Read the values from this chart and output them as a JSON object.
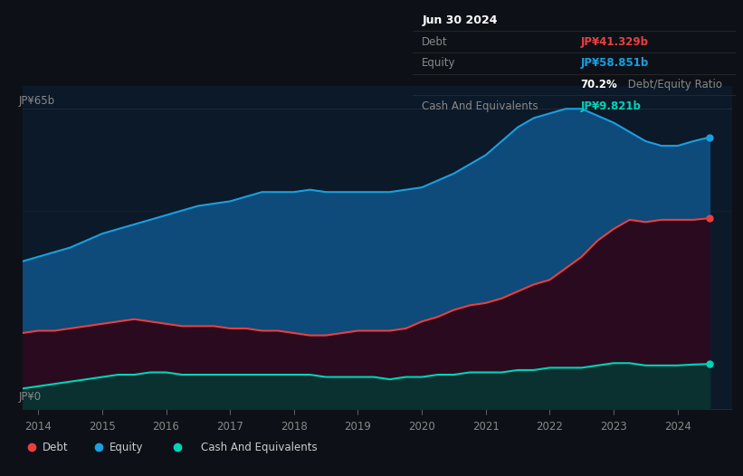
{
  "background_color": "#0d1117",
  "plot_bg_color": "#0b1929",
  "title": "Jun 30 2024",
  "ylabel_top": "JP¥65b",
  "ylabel_bottom": "JP¥0",
  "debt_label": "Debt",
  "equity_label": "Equity",
  "cash_label": "Cash And Equivalents",
  "debt_color": "#e84040",
  "equity_color": "#1a9fe0",
  "cash_color": "#00d4b8",
  "equity_fill_color": "#0e4a7a",
  "debt_fill_color": "#2a0a1e",
  "cash_fill_color": "#0a3030",
  "tooltip": {
    "date": "Jun 30 2024",
    "debt_label": "Debt",
    "debt_value": "JP¥41.329b",
    "equity_label": "Equity",
    "equity_value": "JP¥58.851b",
    "ratio_bold": "70.2%",
    "ratio_text": " Debt/Equity Ratio",
    "cash_label": "Cash And Equivalents",
    "cash_value": "JP¥9.821b",
    "bg_color": "#0a0a0a",
    "border_color": "#2a2a2a",
    "text_color": "#888888",
    "title_color": "#ffffff"
  },
  "years": [
    2013.75,
    2014.0,
    2014.25,
    2014.5,
    2014.75,
    2015.0,
    2015.25,
    2015.5,
    2015.75,
    2016.0,
    2016.25,
    2016.5,
    2016.75,
    2017.0,
    2017.25,
    2017.5,
    2017.75,
    2018.0,
    2018.25,
    2018.5,
    2018.75,
    2019.0,
    2019.25,
    2019.5,
    2019.75,
    2020.0,
    2020.25,
    2020.5,
    2020.75,
    2021.0,
    2021.25,
    2021.5,
    2021.75,
    2022.0,
    2022.25,
    2022.5,
    2022.75,
    2023.0,
    2023.25,
    2023.5,
    2023.75,
    2024.0,
    2024.25,
    2024.5
  ],
  "equity": [
    32.0,
    33.0,
    34.0,
    35.0,
    36.5,
    38.0,
    39.0,
    40.0,
    41.0,
    42.0,
    43.0,
    44.0,
    44.5,
    45.0,
    46.0,
    47.0,
    47.0,
    47.0,
    47.5,
    47.0,
    47.0,
    47.0,
    47.0,
    47.0,
    47.5,
    48.0,
    49.5,
    51.0,
    53.0,
    55.0,
    58.0,
    61.0,
    63.0,
    64.0,
    65.0,
    65.0,
    63.5,
    62.0,
    60.0,
    58.0,
    57.0,
    57.0,
    58.0,
    58.851
  ],
  "debt": [
    16.5,
    17.0,
    17.0,
    17.5,
    18.0,
    18.5,
    19.0,
    19.5,
    19.0,
    18.5,
    18.0,
    18.0,
    18.0,
    17.5,
    17.5,
    17.0,
    17.0,
    16.5,
    16.0,
    16.0,
    16.5,
    17.0,
    17.0,
    17.0,
    17.5,
    19.0,
    20.0,
    21.5,
    22.5,
    23.0,
    24.0,
    25.5,
    27.0,
    28.0,
    30.5,
    33.0,
    36.5,
    39.0,
    41.0,
    40.5,
    41.0,
    41.0,
    41.0,
    41.329
  ],
  "cash": [
    4.5,
    5.0,
    5.5,
    6.0,
    6.5,
    7.0,
    7.5,
    7.5,
    8.0,
    8.0,
    7.5,
    7.5,
    7.5,
    7.5,
    7.5,
    7.5,
    7.5,
    7.5,
    7.5,
    7.0,
    7.0,
    7.0,
    7.0,
    6.5,
    7.0,
    7.0,
    7.5,
    7.5,
    8.0,
    8.0,
    8.0,
    8.5,
    8.5,
    9.0,
    9.0,
    9.0,
    9.5,
    10.0,
    10.0,
    9.5,
    9.5,
    9.5,
    9.7,
    9.821
  ],
  "xlim": [
    2013.75,
    2024.85
  ],
  "ylim": [
    0,
    70
  ],
  "xticks": [
    2014,
    2015,
    2016,
    2017,
    2018,
    2019,
    2020,
    2021,
    2022,
    2023,
    2024
  ],
  "grid_lines": [
    65
  ],
  "legend_items": [
    "Debt",
    "Equity",
    "Cash And Equivalents"
  ]
}
